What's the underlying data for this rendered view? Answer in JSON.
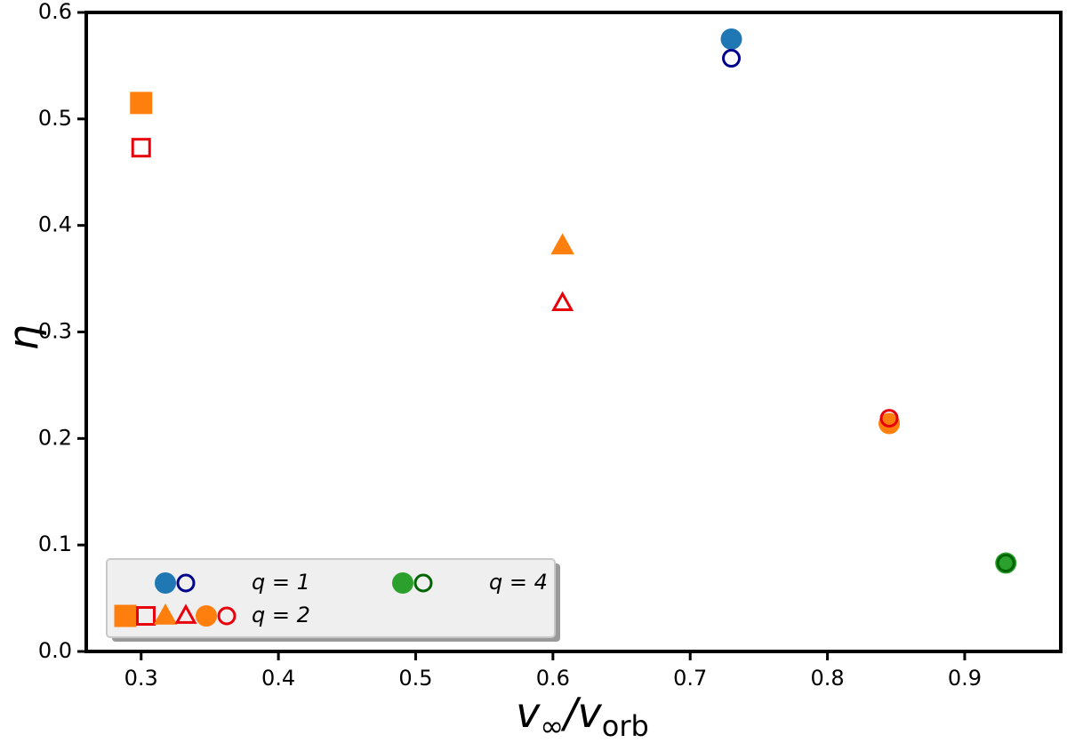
{
  "chart_data": {
    "type": "scatter",
    "title": "",
    "xlabel": "v∞/vorb",
    "ylabel": "η",
    "xlim": [
      0.26,
      0.97
    ],
    "ylim": [
      0.0,
      0.6
    ],
    "x_ticks": [
      "0.3",
      "0.4",
      "0.5",
      "0.6",
      "0.7",
      "0.8",
      "0.9"
    ],
    "y_ticks": [
      "0.0",
      "0.1",
      "0.2",
      "0.3",
      "0.4",
      "0.5",
      "0.6"
    ],
    "grid": false,
    "legend_position": "lower-left",
    "series": [
      {
        "marker": "circle",
        "filled": true,
        "color": "#1f77b4",
        "points": [
          {
            "x": 0.73,
            "y": 0.575
          }
        ]
      },
      {
        "marker": "circle",
        "filled": false,
        "color": "#00008b",
        "points": [
          {
            "x": 0.73,
            "y": 0.557
          }
        ]
      },
      {
        "marker": "square",
        "filled": true,
        "color": "#ff7f0e",
        "points": [
          {
            "x": 0.3,
            "y": 0.515
          }
        ]
      },
      {
        "marker": "square",
        "filled": false,
        "color": "#e8000b",
        "points": [
          {
            "x": 0.3,
            "y": 0.473
          }
        ]
      },
      {
        "marker": "triangle",
        "filled": true,
        "color": "#ff7f0e",
        "points": [
          {
            "x": 0.607,
            "y": 0.381
          }
        ]
      },
      {
        "marker": "triangle",
        "filled": false,
        "color": "#e8000b",
        "points": [
          {
            "x": 0.607,
            "y": 0.327
          }
        ]
      },
      {
        "marker": "circle",
        "filled": true,
        "color": "#ff7f0e",
        "points": [
          {
            "x": 0.845,
            "y": 0.214
          }
        ]
      },
      {
        "marker": "circle",
        "filled": false,
        "color": "#e8000b",
        "points": [
          {
            "x": 0.845,
            "y": 0.219
          }
        ]
      },
      {
        "marker": "circle",
        "filled": true,
        "color": "#2ca02c",
        "points": [
          {
            "x": 0.93,
            "y": 0.083
          }
        ]
      },
      {
        "marker": "circle",
        "filled": false,
        "color": "#006400",
        "points": [
          {
            "x": 0.93,
            "y": 0.083
          }
        ]
      }
    ],
    "legend": [
      {
        "label": "q = 1",
        "markers": [
          {
            "marker": "circle",
            "filled": true,
            "color": "#1f77b4"
          },
          {
            "marker": "circle",
            "filled": false,
            "color": "#00008b"
          }
        ]
      },
      {
        "label": "q = 4",
        "markers": [
          {
            "marker": "circle",
            "filled": true,
            "color": "#2ca02c"
          },
          {
            "marker": "circle",
            "filled": false,
            "color": "#006400"
          }
        ]
      },
      {
        "label": "q = 2",
        "markers": [
          {
            "marker": "square",
            "filled": true,
            "color": "#ff7f0e"
          },
          {
            "marker": "square",
            "filled": false,
            "color": "#e8000b"
          },
          {
            "marker": "triangle",
            "filled": true,
            "color": "#ff7f0e"
          },
          {
            "marker": "triangle",
            "filled": false,
            "color": "#e8000b"
          },
          {
            "marker": "circle",
            "filled": true,
            "color": "#ff7f0e"
          },
          {
            "marker": "circle",
            "filled": false,
            "color": "#e8000b"
          }
        ]
      }
    ]
  }
}
